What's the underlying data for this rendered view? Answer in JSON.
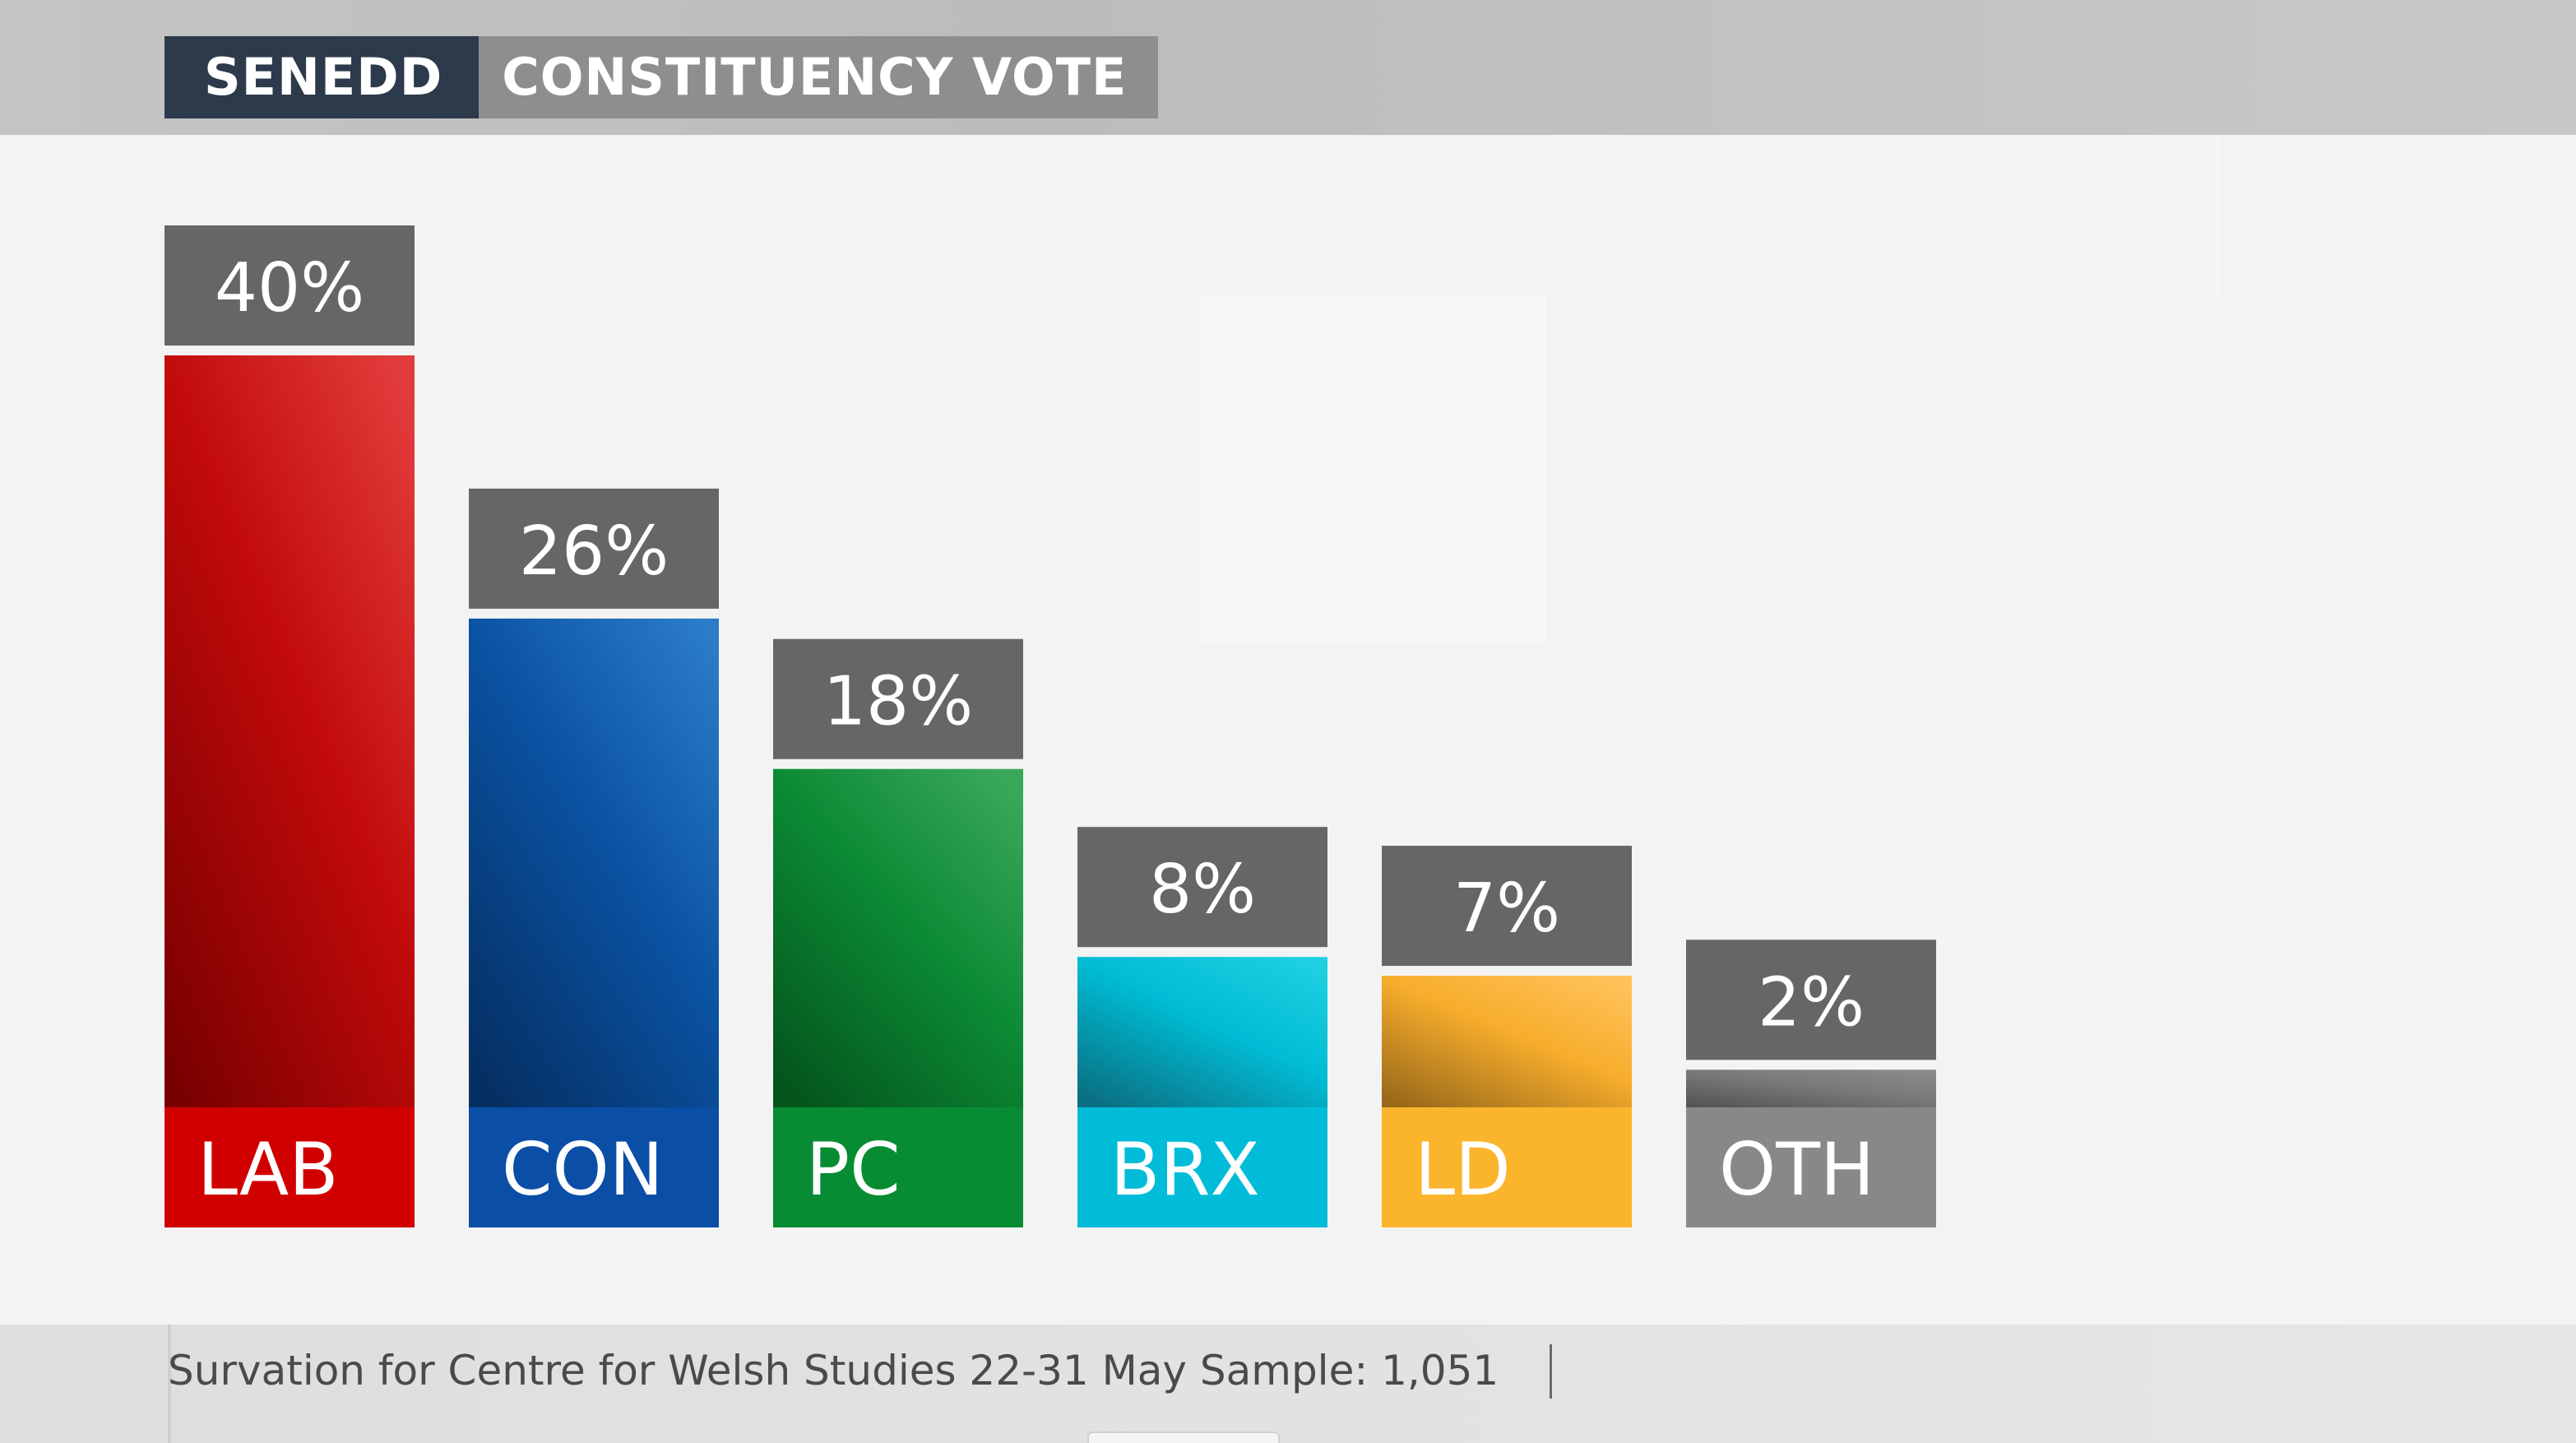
{
  "header": {
    "title_primary": "SENEDD",
    "title_secondary": "CONSTITUENCY VOTE"
  },
  "footer": {
    "source": "Survation for Centre for Welsh Studies 22-31 May Sample: 1,051"
  },
  "chart_data": {
    "type": "bar",
    "title": "SENEDD CONSTITUENCY VOTE",
    "categories": [
      "LAB",
      "CON",
      "PC",
      "BRX",
      "LD",
      "OTH"
    ],
    "values": [
      40,
      26,
      18,
      8,
      7,
      2
    ],
    "value_labels": [
      "40%",
      "26%",
      "18%",
      "8%",
      "7%",
      "2%"
    ],
    "unit": "%",
    "ylim": [
      0,
      40
    ],
    "colors": {
      "LAB": {
        "top": "#e23b3b",
        "mid": "#c20a0a",
        "bottom": "#7a0000",
        "label": "#d10000"
      },
      "CON": {
        "top": "#2a7bc8",
        "mid": "#0a52a2",
        "bottom": "#052f62",
        "label": "#0a4ea6"
      },
      "PC": {
        "top": "#3aa85a",
        "mid": "#0b8a34",
        "bottom": "#04541c",
        "label": "#078c34"
      },
      "BRX": {
        "top": "#1ed0e2",
        "mid": "#00bcd4",
        "bottom": "#0a6f82",
        "label": "#00bcd8"
      },
      "LD": {
        "top": "#ffc25a",
        "mid": "#f7ad2c",
        "bottom": "#9a6a1a",
        "label": "#fbb52c"
      },
      "OTH": {
        "top": "#8a8a8a",
        "mid": "#7a7a7a",
        "bottom": "#555555",
        "label": "#888888"
      }
    },
    "value_box_color": "#666666",
    "label_text_color": "#ffffff"
  }
}
